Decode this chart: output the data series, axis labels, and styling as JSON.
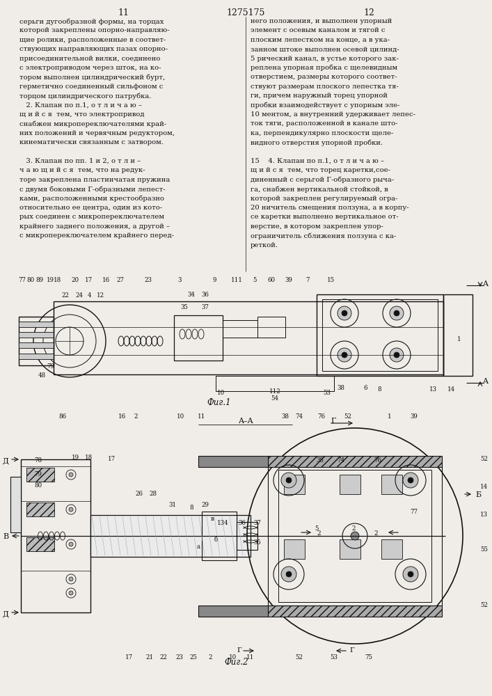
{
  "page_numbers": [
    "11",
    "12"
  ],
  "patent_number": "1275175",
  "bg": "#f0ede8",
  "lc": "#111111",
  "tc": "#111111",
  "fig1_caption": "Фиг.1",
  "fig2_caption": "Фиг.2",
  "left_col": [
    "серьги дугообразной формы, на торцах",
    "которой закреплены опорно-направляю-",
    "щие ролики, расположенные в соответ-",
    "ствующих направляющих пазах опорно-",
    "присоединительной вилки, соединено",
    "с электроприводом через шток, на ко-",
    "тором выполнен цилиндрический бурт,",
    "герметично соединенный сильфоном с",
    "торцом цилиндрического патрубка.",
    "   2. Клапан по п.1, о т л и ч а ю –",
    "щ и й с я  тем, что электропривод",
    "снабжен микропереключателями край-",
    "них положений и червячным редуктором,",
    "кинематически связанным с затвором.",
    "",
    "   3. Клапан по пп. 1 и 2, о т л и –",
    "ч а ю щ и й с я  тем, что на редук-",
    "торе закреплена пластинчатая пружина",
    "с двумя боковыми Г-образными лепест-",
    "ками, расположенными крестообразно",
    "относительно ее центра, один из кото-",
    "рых соединен с микропереключателем",
    "крайнего заднего положения, а другой –",
    "с микропереключателем крайнего перед-"
  ],
  "right_col": [
    "него положения, и выполнен упорный",
    "элемент с осевым каналом и тягой с",
    "плоским лепестком на конце, а в ука-",
    "занном штоке выполнен осевой цилинд-",
    "5 рический канал, в устье которого зак-",
    "реплена упорная пробка с щелевидным",
    "отверстием, размеры которого соответ-",
    "ствуют размерам плоского лепестка тя-",
    "ги, причем наружный торец упорной",
    "пробки взаимодействует с упорным эле-",
    "10 ментом, а внутренний удерживает лепес-",
    "ток тяги, расположенной в канале што-",
    "ка, перпендикулярно плоскости щеле-",
    "видного отверстия упорной пробки.",
    "",
    "15    4. Клапан по п.1, о т л и ч а ю –",
    "щ и й с я  тем, что торец каретки,сое-",
    "диненный с серьгой Г-образного рыча-",
    "га, снабжен вертикальной стойкой, в",
    "которой закреплен регулируемый огра-",
    "20 ничитель смещения ползуна, а в корпу-",
    "се каретки выполнено вертикальное от-",
    "верстие, в котором закреплен упор-",
    "ограничитель сближения ползуна с ка-",
    "реткой."
  ]
}
